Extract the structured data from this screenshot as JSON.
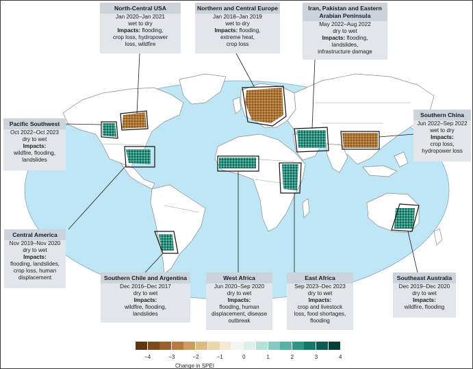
{
  "colors": {
    "ocean": "#bfe6f5",
    "land": "#ffffff",
    "border": "#8a8a8a",
    "dry": "#a06a2c",
    "wet": "#0e6e5e",
    "leader": "#1a1a1a"
  },
  "regions": [
    {
      "id": "north-central-usa",
      "title": "North-Central USA",
      "lines": [
        "Jan 2020–Jan 2021",
        "wet to dry",
        "flooding,",
        "crop loss, hydropower",
        "loss, wildfire"
      ]
    },
    {
      "id": "northern-central-europe",
      "title": "Northern and Central Europe",
      "lines": [
        "Jan 2018–Jan 2019",
        "wet to dry",
        "flooding,",
        "extreme heat,",
        "crop loss"
      ]
    },
    {
      "id": "iran-pakistan",
      "title": "Iran, Pakistan and Eastern",
      "title2": "Arabian Peninsula",
      "lines": [
        "May 2022–Aug 2022",
        "dry to wet",
        "flooding,",
        "landslides,",
        "infrastructure damage"
      ]
    },
    {
      "id": "pacific-southwest",
      "title": "Pacific Southwest",
      "lines": [
        "Oct 2022–Oct 2023",
        "dry to wet",
        "",
        "wildfire, flooding,",
        "landslides"
      ]
    },
    {
      "id": "southern-china",
      "title": "Southern China",
      "lines": [
        "Jun 2022–Sep 2022",
        "wet to dry",
        "",
        "crop loss,",
        "hydropower loss"
      ]
    },
    {
      "id": "central-america",
      "title": "Central America",
      "lines": [
        "Nov 2019–Nov 2020",
        "dry to wet",
        "",
        "flooding, landslides,",
        "crop loss, human",
        "displacement"
      ]
    },
    {
      "id": "southern-chile-argentina",
      "title": "Southern Chile and Argentina",
      "lines": [
        "Dec 2016–Dec 2017",
        "dry to wet",
        "",
        "wildfire, flooding,",
        "landslides"
      ]
    },
    {
      "id": "west-africa",
      "title": "West Africa",
      "lines": [
        "Jun 2020–Sep 2020",
        "dry to wet",
        "",
        "flooding, human",
        "displacement, disease",
        "outbreak"
      ]
    },
    {
      "id": "east-africa",
      "title": "East Africa",
      "lines": [
        "Sep 2023–Dec 2023",
        "dry to wet",
        "",
        "crop and livestock",
        "loss, food shortages,",
        "flooding"
      ]
    },
    {
      "id": "southeast-australia",
      "title": "Southeast Australia",
      "lines": [
        "Dec 2019–Dec 2020",
        "dry to wet",
        "",
        "wildfire, flooding"
      ]
    }
  ],
  "impacts_label": "Impacts:",
  "legend": {
    "title": "Change in SPEI",
    "ticks": [
      "−4",
      "−3",
      "−2",
      "−1",
      "0",
      "1",
      "2",
      "3",
      "4"
    ],
    "colors": [
      "#5e3512",
      "#7d4a1d",
      "#9a6129",
      "#b57d3c",
      "#cc9d5e",
      "#dcbc85",
      "#e9d6ad",
      "#f3ead4",
      "#f4f4f2",
      "#dcefea",
      "#b5e0d7",
      "#86cbbe",
      "#57b2a2",
      "#2f9585",
      "#16776a",
      "#0b5a50",
      "#063d37"
    ]
  }
}
